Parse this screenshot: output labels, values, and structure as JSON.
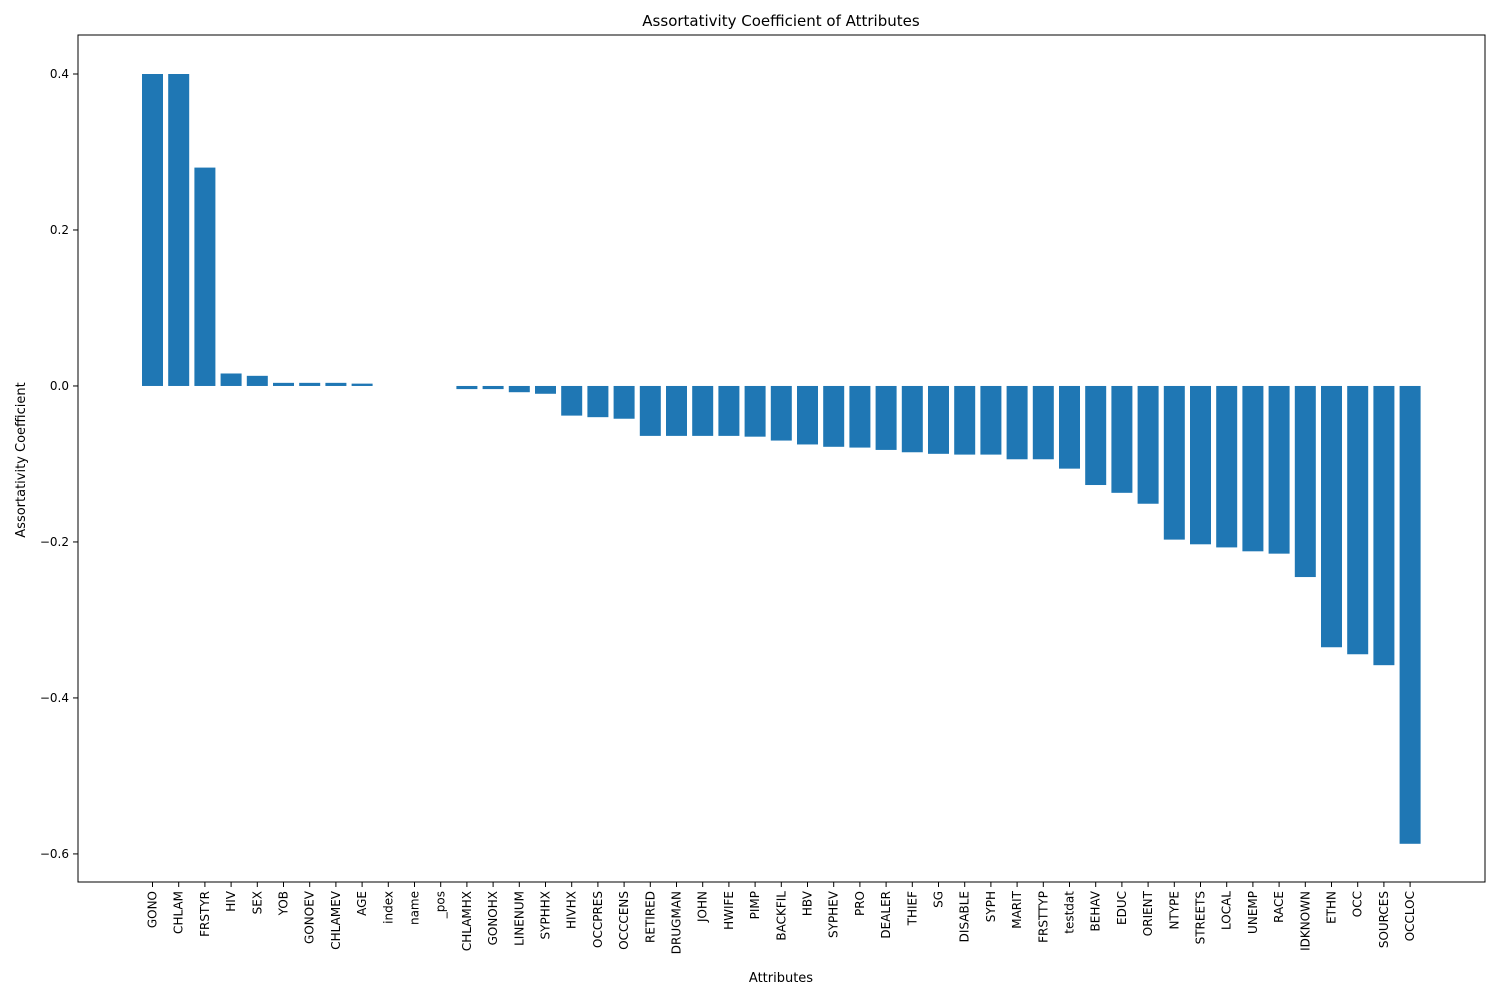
{
  "chart_data": {
    "type": "bar",
    "title": "Assortativity Coefficient of Attributes",
    "xlabel": "Attributes",
    "ylabel": "Assortativity Coefficient",
    "ylim": [
      -0.636,
      0.45
    ],
    "yticks": [
      -0.6,
      -0.4,
      -0.2,
      0.0,
      0.2,
      0.4
    ],
    "ytick_labels": [
      "−0.6",
      "−0.4",
      "−0.2",
      "0.0",
      "0.2",
      "0.4"
    ],
    "grid": false,
    "bar_color": "#1f77b4",
    "categories": [
      "GONO",
      "CHLAM",
      "FRSTYR",
      "HIV",
      "SEX",
      "YOB",
      "GONOEV",
      "CHLAMEV",
      "AGE",
      "index",
      "name",
      "_pos",
      "CHLAMHX",
      "GONOHX",
      "LINENUM",
      "SYPHHX",
      "HIVHX",
      "OCCPRES",
      "OCCCENS",
      "RETIRED",
      "DRUGMAN",
      "JOHN",
      "HWIFE",
      "PIMP",
      "BACKFIL",
      "HBV",
      "SYPHEV",
      "PRO",
      "DEALER",
      "THIEF",
      "SG",
      "DISABLE",
      "SYPH",
      "MARIT",
      "FRSTTYP",
      "testdat",
      "BEHAV",
      "EDUC",
      "ORIENT",
      "NTYPE",
      "STREETS",
      "LOCAL",
      "UNEMP",
      "RACE",
      "IDKNOWN",
      "ETHN",
      "OCC",
      "SOURCES",
      "OCCLOC"
    ],
    "values": [
      0.4,
      0.4,
      0.28,
      0.016,
      0.013,
      0.004,
      0.004,
      0.004,
      0.003,
      0.0,
      0.0,
      0.0,
      -0.004,
      -0.004,
      -0.008,
      -0.01,
      -0.038,
      -0.04,
      -0.042,
      -0.064,
      -0.064,
      -0.064,
      -0.064,
      -0.065,
      -0.07,
      -0.075,
      -0.078,
      -0.079,
      -0.082,
      -0.085,
      -0.087,
      -0.088,
      -0.088,
      -0.094,
      -0.094,
      -0.106,
      -0.127,
      -0.137,
      -0.151,
      -0.197,
      -0.203,
      -0.207,
      -0.212,
      -0.215,
      -0.245,
      -0.335,
      -0.344,
      -0.358,
      -0.587
    ]
  }
}
